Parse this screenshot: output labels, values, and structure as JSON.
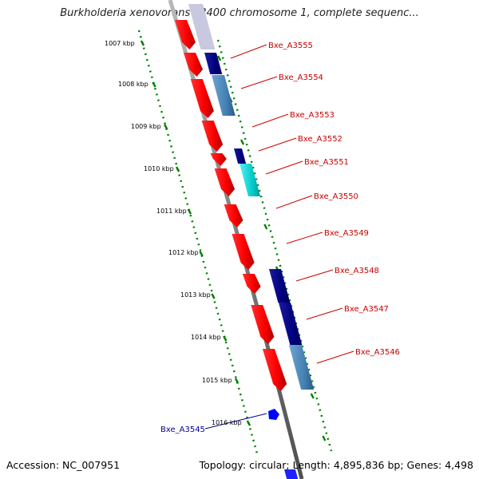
{
  "title": "Burkholderia xenovorans LB400 chromosome 1, complete sequenc...",
  "footer": {
    "accession": "Accession: NC_007951",
    "topology": "Topology: circular; Length: 4,895,836 bp; Genes: 4,498"
  },
  "kbp_ticks": [
    "1007 kbp",
    "1008 kbp",
    "1009 kbp",
    "1010 kbp",
    "1011 kbp",
    "1012 kbp",
    "1013 kbp",
    "1014 kbp",
    "1015 kbp",
    "1016 kbp"
  ],
  "gene_labels": [
    "Bxe_A3555",
    "Bxe_A3554",
    "Bxe_A3553",
    "Bxe_A3552",
    "Bxe_A3551",
    "Bxe_A3550",
    "Bxe_A3549",
    "Bxe_A3548",
    "Bxe_A3547",
    "Bxe_A3546",
    "Bxe_A3545"
  ],
  "colors": {
    "gene_red": "#ff0000",
    "navy": "#000080",
    "steel_blue": "#4682b4",
    "cyan": "#00cccc",
    "blue_marker": "#0000ff",
    "backbone": "#808080",
    "tick_green": "#008000",
    "label_red": "#cc0000",
    "label_blue": "#000099"
  }
}
